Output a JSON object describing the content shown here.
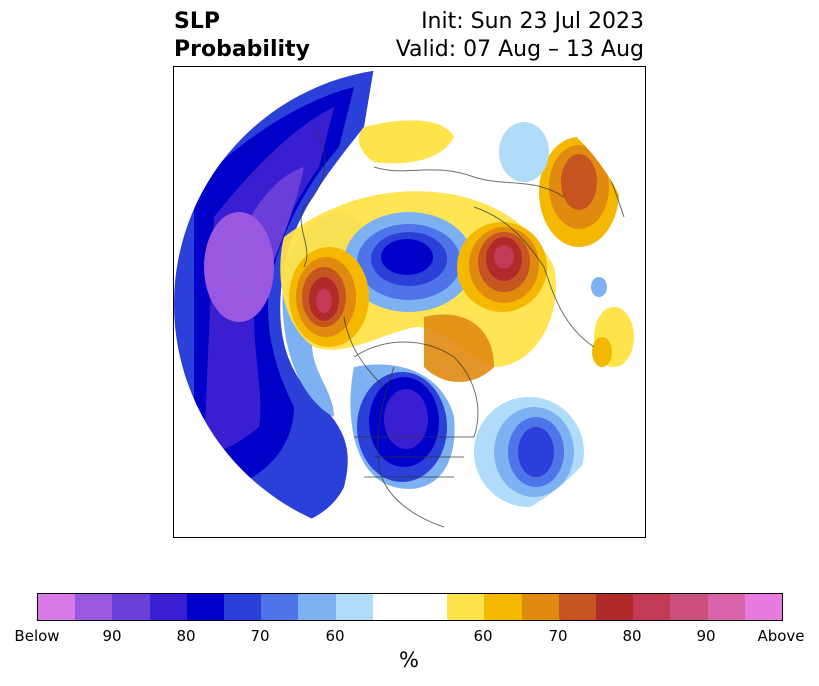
{
  "title": {
    "left_line1": "SLP",
    "left_line2": "Probability",
    "right_line1": "Init: Sun 23 Jul 2023",
    "right_line2": "Valid: 07 Aug – 13 Aug"
  },
  "colorbar": {
    "unit": "%",
    "colors": [
      "#d87ae8",
      "#9a58e0",
      "#6a3fd9",
      "#3a1fd2",
      "#0000c8",
      "#2b3fd9",
      "#4f73e8",
      "#7db1f2",
      "#b0dcfa",
      "#ffffff",
      "#ffffff",
      "#ffe34a",
      "#f5b800",
      "#e08a10",
      "#c65520",
      "#b02a2a",
      "#c23a55",
      "#cc507e",
      "#d863a8",
      "#e87ae0"
    ],
    "tick_labels": [
      "Below",
      "90",
      "80",
      "70",
      "60",
      "60",
      "70",
      "80",
      "90",
      "Above"
    ]
  },
  "map": {
    "type": "polar stereographic probability map",
    "legend_semantics": "blue = below normal SLP probability, orange/red = above normal"
  }
}
